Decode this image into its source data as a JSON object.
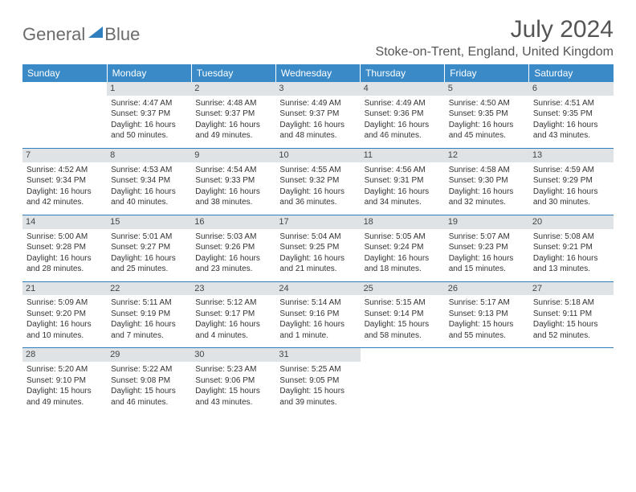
{
  "logo": {
    "part1": "General",
    "part2": "Blue"
  },
  "title": "July 2024",
  "location": "Stoke-on-Trent, England, United Kingdom",
  "day_headers": [
    "Sunday",
    "Monday",
    "Tuesday",
    "Wednesday",
    "Thursday",
    "Friday",
    "Saturday"
  ],
  "colors": {
    "header_bg": "#3a8ac7",
    "row_divider": "#2f7fbf",
    "daynum_bg": "#dfe3e6",
    "logo_gray": "#6b6b6b",
    "logo_blue": "#2f7fbf"
  },
  "weeks": [
    [
      null,
      {
        "n": "1",
        "sr": "Sunrise: 4:47 AM",
        "ss": "Sunset: 9:37 PM",
        "d1": "Daylight: 16 hours",
        "d2": "and 50 minutes."
      },
      {
        "n": "2",
        "sr": "Sunrise: 4:48 AM",
        "ss": "Sunset: 9:37 PM",
        "d1": "Daylight: 16 hours",
        "d2": "and 49 minutes."
      },
      {
        "n": "3",
        "sr": "Sunrise: 4:49 AM",
        "ss": "Sunset: 9:37 PM",
        "d1": "Daylight: 16 hours",
        "d2": "and 48 minutes."
      },
      {
        "n": "4",
        "sr": "Sunrise: 4:49 AM",
        "ss": "Sunset: 9:36 PM",
        "d1": "Daylight: 16 hours",
        "d2": "and 46 minutes."
      },
      {
        "n": "5",
        "sr": "Sunrise: 4:50 AM",
        "ss": "Sunset: 9:35 PM",
        "d1": "Daylight: 16 hours",
        "d2": "and 45 minutes."
      },
      {
        "n": "6",
        "sr": "Sunrise: 4:51 AM",
        "ss": "Sunset: 9:35 PM",
        "d1": "Daylight: 16 hours",
        "d2": "and 43 minutes."
      }
    ],
    [
      {
        "n": "7",
        "sr": "Sunrise: 4:52 AM",
        "ss": "Sunset: 9:34 PM",
        "d1": "Daylight: 16 hours",
        "d2": "and 42 minutes."
      },
      {
        "n": "8",
        "sr": "Sunrise: 4:53 AM",
        "ss": "Sunset: 9:34 PM",
        "d1": "Daylight: 16 hours",
        "d2": "and 40 minutes."
      },
      {
        "n": "9",
        "sr": "Sunrise: 4:54 AM",
        "ss": "Sunset: 9:33 PM",
        "d1": "Daylight: 16 hours",
        "d2": "and 38 minutes."
      },
      {
        "n": "10",
        "sr": "Sunrise: 4:55 AM",
        "ss": "Sunset: 9:32 PM",
        "d1": "Daylight: 16 hours",
        "d2": "and 36 minutes."
      },
      {
        "n": "11",
        "sr": "Sunrise: 4:56 AM",
        "ss": "Sunset: 9:31 PM",
        "d1": "Daylight: 16 hours",
        "d2": "and 34 minutes."
      },
      {
        "n": "12",
        "sr": "Sunrise: 4:58 AM",
        "ss": "Sunset: 9:30 PM",
        "d1": "Daylight: 16 hours",
        "d2": "and 32 minutes."
      },
      {
        "n": "13",
        "sr": "Sunrise: 4:59 AM",
        "ss": "Sunset: 9:29 PM",
        "d1": "Daylight: 16 hours",
        "d2": "and 30 minutes."
      }
    ],
    [
      {
        "n": "14",
        "sr": "Sunrise: 5:00 AM",
        "ss": "Sunset: 9:28 PM",
        "d1": "Daylight: 16 hours",
        "d2": "and 28 minutes."
      },
      {
        "n": "15",
        "sr": "Sunrise: 5:01 AM",
        "ss": "Sunset: 9:27 PM",
        "d1": "Daylight: 16 hours",
        "d2": "and 25 minutes."
      },
      {
        "n": "16",
        "sr": "Sunrise: 5:03 AM",
        "ss": "Sunset: 9:26 PM",
        "d1": "Daylight: 16 hours",
        "d2": "and 23 minutes."
      },
      {
        "n": "17",
        "sr": "Sunrise: 5:04 AM",
        "ss": "Sunset: 9:25 PM",
        "d1": "Daylight: 16 hours",
        "d2": "and 21 minutes."
      },
      {
        "n": "18",
        "sr": "Sunrise: 5:05 AM",
        "ss": "Sunset: 9:24 PM",
        "d1": "Daylight: 16 hours",
        "d2": "and 18 minutes."
      },
      {
        "n": "19",
        "sr": "Sunrise: 5:07 AM",
        "ss": "Sunset: 9:23 PM",
        "d1": "Daylight: 16 hours",
        "d2": "and 15 minutes."
      },
      {
        "n": "20",
        "sr": "Sunrise: 5:08 AM",
        "ss": "Sunset: 9:21 PM",
        "d1": "Daylight: 16 hours",
        "d2": "and 13 minutes."
      }
    ],
    [
      {
        "n": "21",
        "sr": "Sunrise: 5:09 AM",
        "ss": "Sunset: 9:20 PM",
        "d1": "Daylight: 16 hours",
        "d2": "and 10 minutes."
      },
      {
        "n": "22",
        "sr": "Sunrise: 5:11 AM",
        "ss": "Sunset: 9:19 PM",
        "d1": "Daylight: 16 hours",
        "d2": "and 7 minutes."
      },
      {
        "n": "23",
        "sr": "Sunrise: 5:12 AM",
        "ss": "Sunset: 9:17 PM",
        "d1": "Daylight: 16 hours",
        "d2": "and 4 minutes."
      },
      {
        "n": "24",
        "sr": "Sunrise: 5:14 AM",
        "ss": "Sunset: 9:16 PM",
        "d1": "Daylight: 16 hours",
        "d2": "and 1 minute."
      },
      {
        "n": "25",
        "sr": "Sunrise: 5:15 AM",
        "ss": "Sunset: 9:14 PM",
        "d1": "Daylight: 15 hours",
        "d2": "and 58 minutes."
      },
      {
        "n": "26",
        "sr": "Sunrise: 5:17 AM",
        "ss": "Sunset: 9:13 PM",
        "d1": "Daylight: 15 hours",
        "d2": "and 55 minutes."
      },
      {
        "n": "27",
        "sr": "Sunrise: 5:18 AM",
        "ss": "Sunset: 9:11 PM",
        "d1": "Daylight: 15 hours",
        "d2": "and 52 minutes."
      }
    ],
    [
      {
        "n": "28",
        "sr": "Sunrise: 5:20 AM",
        "ss": "Sunset: 9:10 PM",
        "d1": "Daylight: 15 hours",
        "d2": "and 49 minutes."
      },
      {
        "n": "29",
        "sr": "Sunrise: 5:22 AM",
        "ss": "Sunset: 9:08 PM",
        "d1": "Daylight: 15 hours",
        "d2": "and 46 minutes."
      },
      {
        "n": "30",
        "sr": "Sunrise: 5:23 AM",
        "ss": "Sunset: 9:06 PM",
        "d1": "Daylight: 15 hours",
        "d2": "and 43 minutes."
      },
      {
        "n": "31",
        "sr": "Sunrise: 5:25 AM",
        "ss": "Sunset: 9:05 PM",
        "d1": "Daylight: 15 hours",
        "d2": "and 39 minutes."
      },
      null,
      null,
      null
    ]
  ]
}
